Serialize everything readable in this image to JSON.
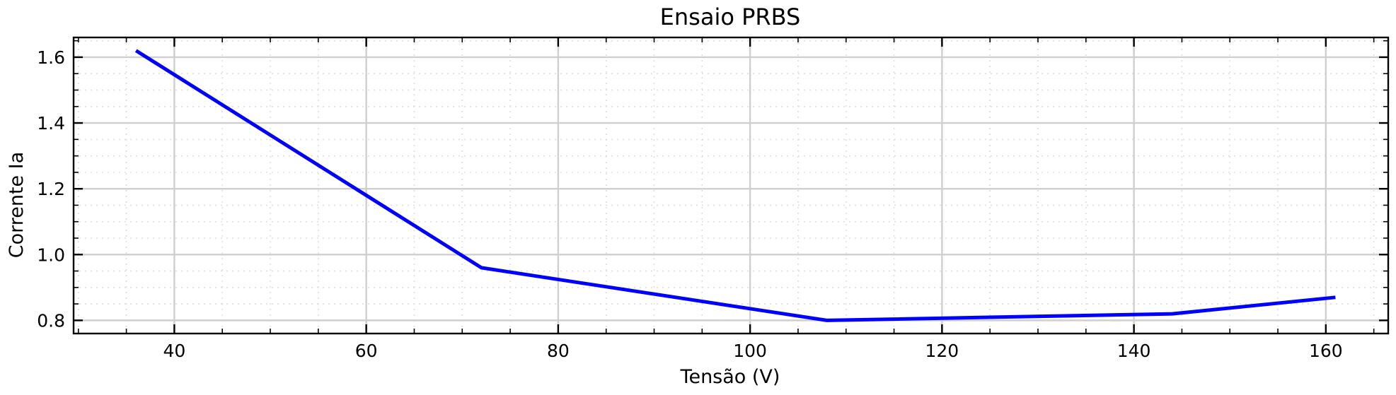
{
  "chart_data": {
    "type": "line",
    "title": "Ensaio PRBS",
    "xlabel": "Tensão (V)",
    "ylabel": "Corrente Ia",
    "xlim": [
      29.5,
      166.5
    ],
    "ylim": [
      0.76,
      1.66
    ],
    "xticks": [
      40,
      60,
      80,
      100,
      120,
      140,
      160
    ],
    "yticks": [
      0.8,
      1.0,
      1.2,
      1.4,
      1.6
    ],
    "x_minor_step": 5,
    "y_minor_step": 0.05,
    "grid": true,
    "series": [
      {
        "color": "#0000ff",
        "x": [
          36,
          72,
          108,
          144,
          161
        ],
        "y": [
          1.62,
          0.96,
          0.8,
          0.82,
          0.87
        ]
      }
    ]
  }
}
